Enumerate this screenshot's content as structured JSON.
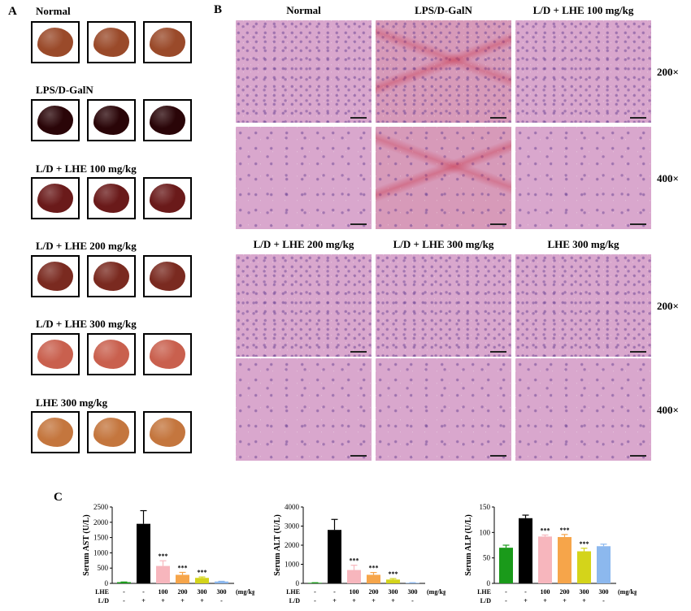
{
  "panel_a": {
    "letter": "A",
    "groups": [
      {
        "title": "Normal",
        "color": "#9a4a2a"
      },
      {
        "title": "LPS/D-GalN",
        "color": "#2a0508"
      },
      {
        "title": "L/D + LHE 100 mg/kg",
        "color": "#6a1a1a"
      },
      {
        "title": "L/D + LHE 200 mg/kg",
        "color": "#7a2a20"
      },
      {
        "title": "L/D + LHE 300 mg/kg",
        "color": "#c9604e"
      },
      {
        "title": "LHE 300 mg/kg",
        "color": "#c4763e"
      }
    ]
  },
  "panel_b": {
    "letter": "B",
    "top_titles": [
      "Normal",
      "LPS/D-GalN",
      "L/D + LHE 100 mg/kg"
    ],
    "bottom_titles": [
      "L/D + LHE 200 mg/kg",
      "L/D + LHE 300 mg/kg",
      "LHE 300 mg/kg"
    ],
    "mag_200": "200×",
    "mag_400": "400×"
  },
  "panel_c": {
    "letter": "C",
    "row_lhe": "LHE",
    "row_ld": "L/D",
    "lhe_values": [
      "-",
      "-",
      "100",
      "200",
      "300",
      "300"
    ],
    "ld_values": [
      "-",
      "+",
      "+",
      "+",
      "+",
      "-"
    ],
    "unit": "(mg/kg)",
    "significance": "***"
  },
  "chart_data": [
    {
      "type": "bar",
      "ylabel": "Serum AST (U/L)",
      "ylim": [
        0,
        2500
      ],
      "yticks": [
        0,
        500,
        1000,
        1500,
        2000,
        2500
      ],
      "categories": [
        "-/-",
        "-/+",
        "100/+",
        "200/+",
        "300/+",
        "300/-"
      ],
      "values": [
        40,
        1950,
        570,
        280,
        180,
        60
      ],
      "errors": [
        5,
        430,
        170,
        80,
        30,
        8
      ],
      "colors": [
        "#1a9a1a",
        "#000000",
        "#f7b6bd",
        "#f6a54a",
        "#d4d41a",
        "#8cb8ee"
      ],
      "stars": [
        false,
        false,
        true,
        true,
        true,
        false
      ]
    },
    {
      "type": "bar",
      "ylabel": "Serum ALT (U/L)",
      "ylim": [
        0,
        4000
      ],
      "yticks": [
        0,
        1000,
        2000,
        3000,
        4000
      ],
      "categories": [
        "-/-",
        "-/+",
        "100/+",
        "200/+",
        "300/+",
        "300/-"
      ],
      "values": [
        30,
        2800,
        700,
        450,
        200,
        30
      ],
      "errors": [
        5,
        550,
        250,
        120,
        50,
        5
      ],
      "colors": [
        "#1a9a1a",
        "#000000",
        "#f7b6bd",
        "#f6a54a",
        "#d4d41a",
        "#8cb8ee"
      ],
      "stars": [
        false,
        false,
        true,
        true,
        true,
        false
      ]
    },
    {
      "type": "bar",
      "ylabel": "Serum ALP (U/L)",
      "ylim": [
        0,
        150
      ],
      "yticks": [
        0,
        50,
        100,
        150
      ],
      "categories": [
        "-/-",
        "-/+",
        "100/+",
        "200/+",
        "300/+",
        "300/-"
      ],
      "values": [
        70,
        128,
        92,
        91,
        63,
        73
      ],
      "errors": [
        5,
        6,
        3,
        5,
        6,
        4
      ],
      "colors": [
        "#1a9a1a",
        "#000000",
        "#f7b6bd",
        "#f6a54a",
        "#d4d41a",
        "#8cb8ee"
      ],
      "stars": [
        false,
        false,
        true,
        true,
        true,
        false
      ]
    }
  ]
}
